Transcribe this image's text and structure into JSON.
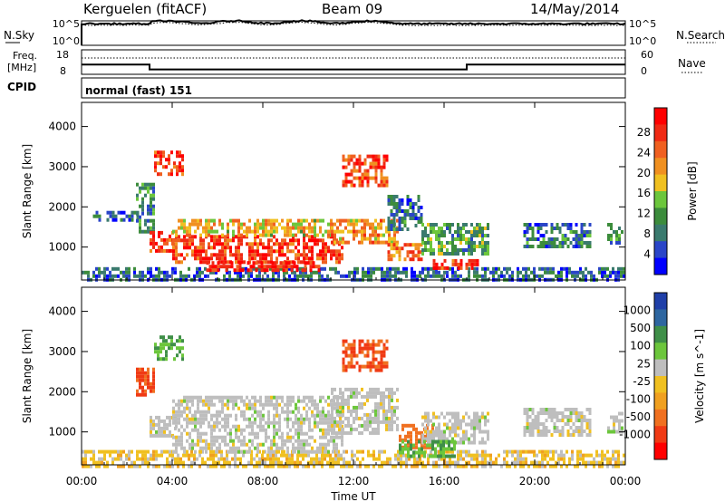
{
  "header": {
    "station": "Kerguelen (fitACF)",
    "beam": "Beam 09",
    "date": "14/May/2014"
  },
  "panels": {
    "nsky": {
      "label": "N.Sky",
      "tick_top": "10^5",
      "tick_bottom": "10^0",
      "right_label": "N.Search",
      "right_tick_top": "10^5",
      "right_tick_bottom": "10^0"
    },
    "freq": {
      "label_line1": "Freq.",
      "label_line2": "[MHz]",
      "tick_top": "18",
      "tick_bottom": "8",
      "right_label": "Nave",
      "right_tick_top": "60",
      "right_tick_bottom": "0"
    },
    "cpid": {
      "label": "CPID",
      "value": "normal (fast) 151"
    }
  },
  "chart_data": [
    {
      "type": "heatmap",
      "name_of_panel": "power",
      "xlabel": "Time UT",
      "ylabel": "Slant Range [km]",
      "xlim": [
        0,
        24
      ],
      "ylim": [
        180,
        4600
      ],
      "xticks": [
        "00:00",
        "04:00",
        "08:00",
        "12:00",
        "16:00",
        "20:00",
        "00:00"
      ],
      "yticks": [
        "1000",
        "2000",
        "3000",
        "4000"
      ],
      "colorbar": {
        "label": "Power [dB]",
        "ticks": [
          "4",
          "8",
          "12",
          "16",
          "20",
          "24",
          "28"
        ],
        "colors": [
          "#0000ff",
          "#2a45c8",
          "#3a7a6e",
          "#3c8c3c",
          "#6cc63c",
          "#f0c020",
          "#f09020",
          "#f06020",
          "#f02a14",
          "#ff0000"
        ]
      },
      "regions": [
        {
          "t0": 0.0,
          "t1": 24.0,
          "r0": 180,
          "r1": 500,
          "value": 8
        },
        {
          "t0": 0.5,
          "t1": 2.5,
          "r0": 1700,
          "r1": 1900,
          "value": 8
        },
        {
          "t0": 2.4,
          "t1": 3.2,
          "r0": 1300,
          "r1": 2600,
          "value": 10
        },
        {
          "t0": 3.2,
          "t1": 4.5,
          "r0": 2800,
          "r1": 3400,
          "value": 26
        },
        {
          "t0": 3.0,
          "t1": 4.2,
          "r0": 900,
          "r1": 1400,
          "value": 26
        },
        {
          "t0": 4.0,
          "t1": 11.5,
          "r0": 650,
          "r1": 1300,
          "value": 25
        },
        {
          "t0": 4.0,
          "t1": 11.0,
          "r0": 1300,
          "r1": 1700,
          "value": 18
        },
        {
          "t0": 5.5,
          "t1": 10.5,
          "r0": 420,
          "r1": 650,
          "value": 28
        },
        {
          "t0": 11.5,
          "t1": 13.5,
          "r0": 2500,
          "r1": 3300,
          "value": 24
        },
        {
          "t0": 11.0,
          "t1": 14.0,
          "r0": 1100,
          "r1": 1700,
          "value": 20
        },
        {
          "t0": 13.5,
          "t1": 15.0,
          "r0": 1400,
          "r1": 2300,
          "value": 9
        },
        {
          "t0": 13.5,
          "t1": 15.0,
          "r0": 650,
          "r1": 1100,
          "value": 22
        },
        {
          "t0": 15.0,
          "t1": 18.0,
          "r0": 800,
          "r1": 1600,
          "value": 12
        },
        {
          "t0": 15.5,
          "t1": 17.5,
          "r0": 450,
          "r1": 700,
          "value": 26
        },
        {
          "t0": 19.5,
          "t1": 22.5,
          "r0": 1000,
          "r1": 1600,
          "value": 9
        },
        {
          "t0": 23.2,
          "t1": 23.9,
          "r0": 1100,
          "r1": 1600,
          "value": 10
        }
      ]
    },
    {
      "type": "heatmap",
      "name_of_panel": "velocity",
      "xlabel": "Time UT",
      "ylabel": "Slant Range [km]",
      "xlim": [
        0,
        24
      ],
      "ylim": [
        180,
        4600
      ],
      "xticks": [
        "00:00",
        "04:00",
        "08:00",
        "12:00",
        "16:00",
        "20:00",
        "00:00"
      ],
      "yticks": [
        "1000",
        "2000",
        "3000",
        "4000"
      ],
      "colorbar": {
        "label": "Velocity [m s^-1]",
        "ticks": [
          "1000",
          "500",
          "100",
          "25",
          "-25",
          "-100",
          "-500",
          "-1000"
        ],
        "colors": [
          "#1f3fa8",
          "#2e66a0",
          "#3f8f48",
          "#6cc63c",
          "#bebebe",
          "#f0c020",
          "#f0a020",
          "#f07020",
          "#f03a14",
          "#ff0000"
        ]
      },
      "regions": [
        {
          "t0": 0.0,
          "t1": 24.0,
          "r0": 180,
          "r1": 550,
          "value": -40
        },
        {
          "t0": 2.4,
          "t1": 3.2,
          "r0": 1900,
          "r1": 2600,
          "value": -300
        },
        {
          "t0": 3.2,
          "t1": 4.5,
          "r0": 2800,
          "r1": 3400,
          "value": 60
        },
        {
          "t0": 3.0,
          "t1": 4.2,
          "r0": 900,
          "r1": 1400,
          "value": 0
        },
        {
          "t0": 4.0,
          "t1": 11.5,
          "r0": 500,
          "r1": 1900,
          "value": 0
        },
        {
          "t0": 11.5,
          "t1": 13.5,
          "r0": 2500,
          "r1": 3300,
          "value": -300
        },
        {
          "t0": 11.0,
          "t1": 14.0,
          "r0": 1000,
          "r1": 2100,
          "value": 0
        },
        {
          "t0": 14.0,
          "t1": 15.5,
          "r0": 600,
          "r1": 1200,
          "value": -150
        },
        {
          "t0": 15.0,
          "t1": 18.0,
          "r0": 700,
          "r1": 1500,
          "value": 0
        },
        {
          "t0": 14.0,
          "t1": 16.5,
          "r0": 400,
          "r1": 800,
          "value": 60
        },
        {
          "t0": 19.5,
          "t1": 22.5,
          "r0": 900,
          "r1": 1600,
          "value": 0
        },
        {
          "t0": 23.2,
          "t1": 23.9,
          "r0": 1000,
          "r1": 1500,
          "value": 0
        }
      ]
    }
  ],
  "noise_data": {
    "nsky_level": 1.2,
    "nsearch_level": 1.0,
    "freq_mhz": [
      {
        "t0": 0.0,
        "t1": 3.0,
        "value": 12.0
      },
      {
        "t0": 3.0,
        "t1": 17.0,
        "value": 10.0
      },
      {
        "t0": 17.0,
        "t1": 24.0,
        "value": 12.0
      }
    ],
    "nave": 40
  },
  "colors": {
    "line": "#000000",
    "background": "#ffffff"
  }
}
